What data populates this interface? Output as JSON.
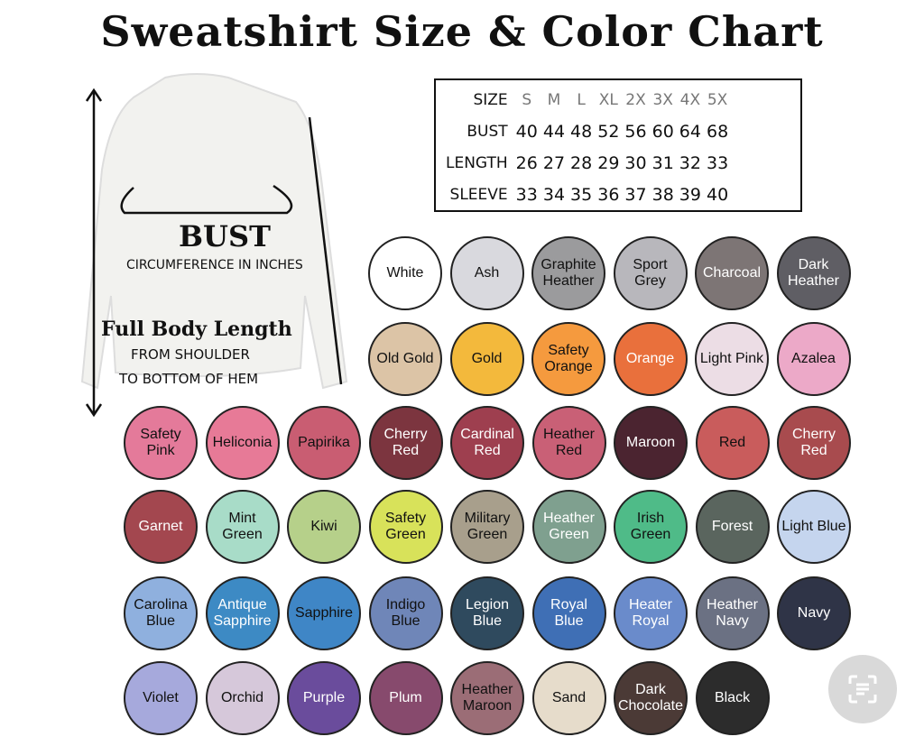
{
  "title": "Sweatshirt Size & Color Chart",
  "diagram": {
    "bust_label": "BUST",
    "bust_sub": "CIRCUMFERENCE IN INCHES",
    "length_label": "Full Body Length",
    "length_sub1": "FROM SHOULDER",
    "length_sub2": "TO BOTTOM OF HEM"
  },
  "size_table": {
    "header_label": "SIZE",
    "sizes": [
      "S",
      "M",
      "L",
      "XL",
      "2X",
      "3X",
      "4X",
      "5X"
    ],
    "rows": [
      {
        "label": "BUST",
        "values": [
          "40",
          "44",
          "48",
          "52",
          "56",
          "60",
          "64",
          "68"
        ]
      },
      {
        "label": "LENGTH",
        "values": [
          "26",
          "27",
          "28",
          "29",
          "30",
          "31",
          "32",
          "33"
        ]
      },
      {
        "label": "SLEEVE",
        "values": [
          "33",
          "34",
          "35",
          "36",
          "37",
          "38",
          "39",
          "40"
        ]
      }
    ]
  },
  "colors": [
    [
      {
        "name": "White",
        "hex": "#ffffff",
        "text": "#111"
      },
      {
        "name": "Ash",
        "hex": "#d9d9de",
        "text": "#111"
      },
      {
        "name": "Graphite Heather",
        "hex": "#9b9b9d",
        "text": "#111"
      },
      {
        "name": "Sport Grey",
        "hex": "#b8b7bc",
        "text": "#111"
      },
      {
        "name": "Charcoal",
        "hex": "#7d7575",
        "text": "#fff"
      },
      {
        "name": "Dark Heather",
        "hex": "#5f5e64",
        "text": "#fff"
      }
    ],
    [
      {
        "name": "Old Gold",
        "hex": "#dcc4a6",
        "text": "#111"
      },
      {
        "name": "Gold",
        "hex": "#f3b93c",
        "text": "#111"
      },
      {
        "name": "Safety Orange",
        "hex": "#f59a3e",
        "text": "#111"
      },
      {
        "name": "Orange",
        "hex": "#e9703c",
        "text": "#fff"
      },
      {
        "name": "Light Pink",
        "hex": "#ecdde5",
        "text": "#111"
      },
      {
        "name": "Azalea",
        "hex": "#eca9c8",
        "text": "#111"
      }
    ],
    [
      {
        "name": "Safety Pink",
        "hex": "#e47a9a",
        "text": "#111"
      },
      {
        "name": "Heliconia",
        "hex": "#e77a97",
        "text": "#111"
      },
      {
        "name": "Papirika",
        "hex": "#c95d72",
        "text": "#111"
      },
      {
        "name": "Cherry Red",
        "hex": "#7c353f",
        "text": "#fff"
      },
      {
        "name": "Cardinal Red",
        "hex": "#9e3f4f",
        "text": "#fff"
      },
      {
        "name": "Heather Red",
        "hex": "#c96076",
        "text": "#111"
      },
      {
        "name": "Maroon",
        "hex": "#4b2430",
        "text": "#fff"
      },
      {
        "name": "Red",
        "hex": "#c95c5c",
        "text": "#111"
      },
      {
        "name": "Cherry Red",
        "hex": "#a84b4e",
        "text": "#fff"
      }
    ],
    [
      {
        "name": "Garnet",
        "hex": "#a3474f",
        "text": "#fff"
      },
      {
        "name": "Mint Green",
        "hex": "#a8dcc8",
        "text": "#111"
      },
      {
        "name": "Kiwi",
        "hex": "#b6d08a",
        "text": "#111"
      },
      {
        "name": "Safety Green",
        "hex": "#d8e25a",
        "text": "#111"
      },
      {
        "name": "Military Green",
        "hex": "#a89f8c",
        "text": "#111"
      },
      {
        "name": "Heather Green",
        "hex": "#7fa08f",
        "text": "#fff"
      },
      {
        "name": "Irish Green",
        "hex": "#4fbb88",
        "text": "#111"
      },
      {
        "name": "Forest",
        "hex": "#5a655e",
        "text": "#fff"
      },
      {
        "name": "Light Blue",
        "hex": "#c5d5ee",
        "text": "#111"
      }
    ],
    [
      {
        "name": "Carolina Blue",
        "hex": "#8fb0de",
        "text": "#111"
      },
      {
        "name": "Antique Sapphire",
        "hex": "#3d8ac4",
        "text": "#fff"
      },
      {
        "name": "Sapphire",
        "hex": "#3f86c6",
        "text": "#111"
      },
      {
        "name": "Indigo Blue",
        "hex": "#6f86b8",
        "text": "#111"
      },
      {
        "name": "Legion Blue",
        "hex": "#2f4a5e",
        "text": "#fff"
      },
      {
        "name": "Royal Blue",
        "hex": "#3f6fb5",
        "text": "#fff"
      },
      {
        "name": "Heater Royal",
        "hex": "#6a8bcb",
        "text": "#fff"
      },
      {
        "name": "Heather Navy",
        "hex": "#6b7183",
        "text": "#fff"
      },
      {
        "name": "Navy",
        "hex": "#2f3447",
        "text": "#fff"
      }
    ],
    [
      {
        "name": "Violet",
        "hex": "#a6a9dc",
        "text": "#111"
      },
      {
        "name": "Orchid",
        "hex": "#d6c8da",
        "text": "#111"
      },
      {
        "name": "Purple",
        "hex": "#6a4c9c",
        "text": "#fff"
      },
      {
        "name": "Plum",
        "hex": "#874a6d",
        "text": "#fff"
      },
      {
        "name": "Heather Maroon",
        "hex": "#9b6d76",
        "text": "#111"
      },
      {
        "name": "Sand",
        "hex": "#e6dccb",
        "text": "#111"
      },
      {
        "name": "Dark Chocolate",
        "hex": "#4b3a36",
        "text": "#fff"
      },
      {
        "name": "Black",
        "hex": "#2c2c2c",
        "text": "#fff"
      }
    ]
  ],
  "scan_button": {
    "icon": "scan-text-icon"
  }
}
